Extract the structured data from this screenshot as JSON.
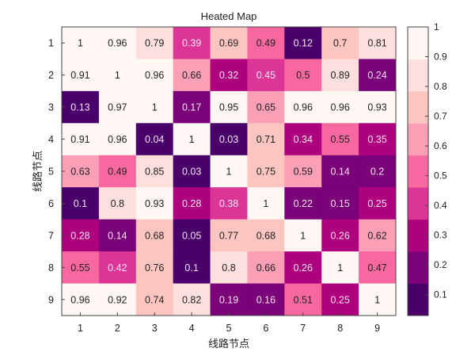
{
  "chart_data": {
    "type": "heatmap",
    "title": "Heated Map",
    "xlabel": "线路节点",
    "ylabel": "线路节点",
    "x_categories": [
      "1",
      "2",
      "3",
      "4",
      "5",
      "6",
      "7",
      "8",
      "9"
    ],
    "y_categories": [
      "1",
      "2",
      "3",
      "4",
      "5",
      "6",
      "7",
      "8",
      "9"
    ],
    "values": [
      [
        1,
        0.96,
        0.79,
        0.39,
        0.69,
        0.49,
        0.12,
        0.7,
        0.81
      ],
      [
        0.91,
        1,
        0.96,
        0.66,
        0.32,
        0.45,
        0.5,
        0.89,
        0.24
      ],
      [
        0.13,
        0.97,
        1,
        0.17,
        0.95,
        0.65,
        0.96,
        0.96,
        0.93
      ],
      [
        0.91,
        0.96,
        0.04,
        1,
        0.03,
        0.71,
        0.34,
        0.55,
        0.35
      ],
      [
        0.63,
        0.49,
        0.85,
        0.03,
        1,
        0.75,
        0.59,
        0.14,
        0.2
      ],
      [
        0.1,
        0.8,
        0.93,
        0.28,
        0.38,
        1,
        0.22,
        0.15,
        0.25
      ],
      [
        0.28,
        0.14,
        0.68,
        0.05,
        0.77,
        0.68,
        1,
        0.26,
        0.62
      ],
      [
        0.55,
        0.42,
        0.76,
        0.1,
        0.8,
        0.66,
        0.26,
        1,
        0.47
      ],
      [
        0.96,
        0.92,
        0.74,
        0.82,
        0.19,
        0.16,
        0.51,
        0.25,
        1
      ]
    ],
    "colorbar": {
      "range": [
        0.03,
        1
      ],
      "ticks": [
        "0.1",
        "0.2",
        "0.3",
        "0.4",
        "0.5",
        "0.6",
        "0.7",
        "0.8",
        "0.9",
        "1"
      ],
      "colors": [
        "#49006a",
        "#7a0177",
        "#ae017e",
        "#dd3497",
        "#f768a1",
        "#fa9fb5",
        "#fcc5c0",
        "#fde0dd",
        "#fff7f3"
      ]
    },
    "grid": false,
    "legend": "right"
  }
}
